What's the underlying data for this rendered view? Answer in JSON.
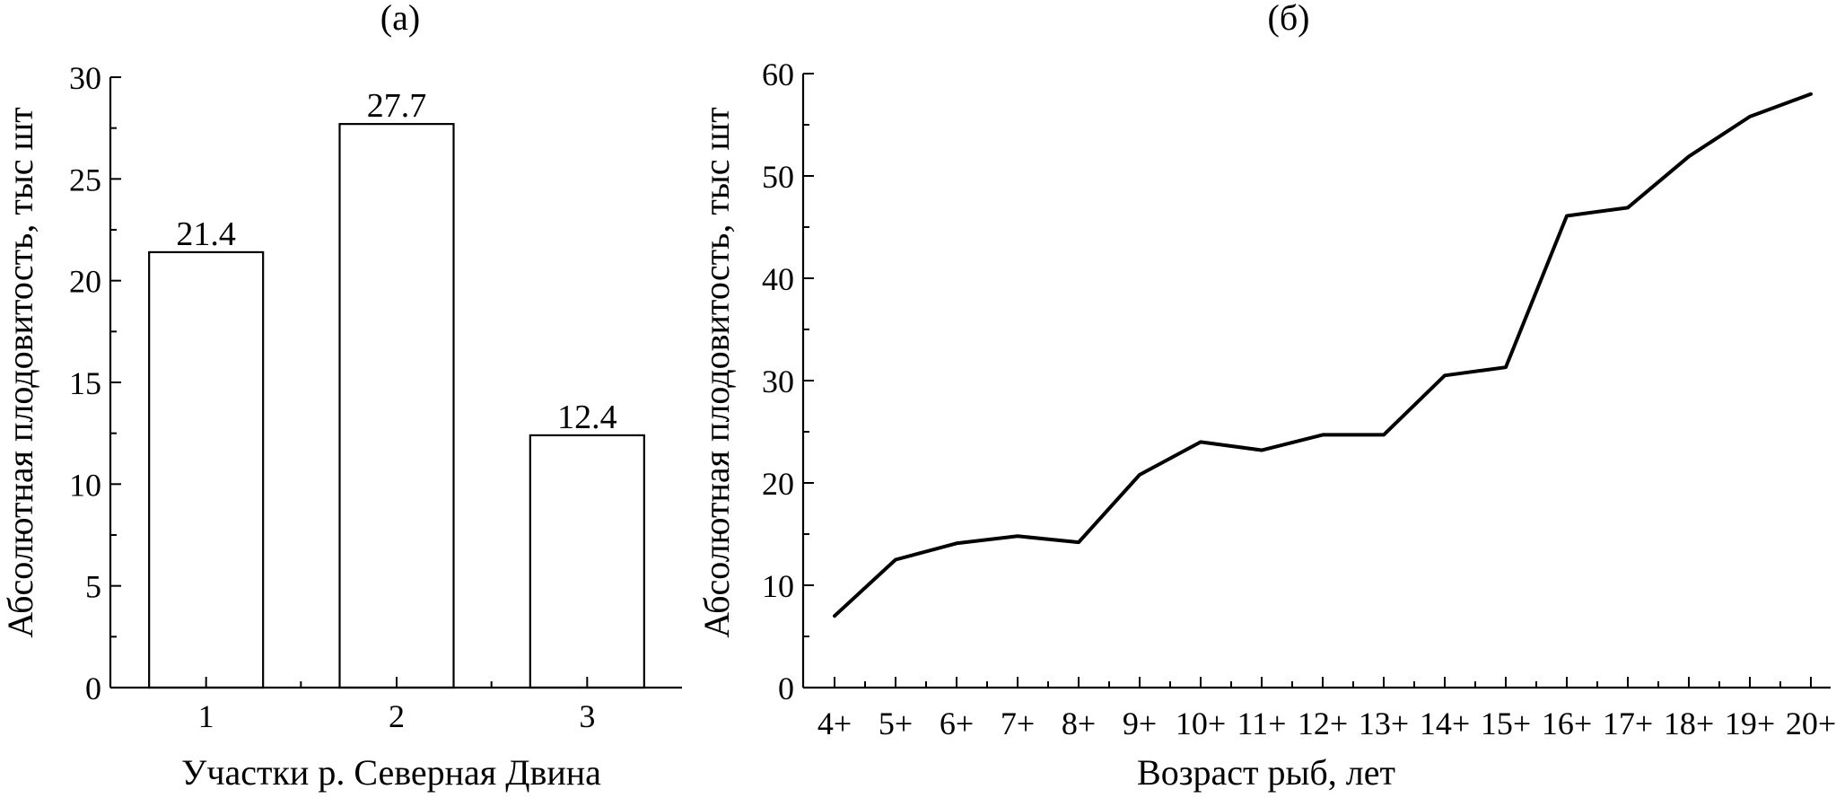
{
  "chart_data": [
    {
      "panel_label": "(а)",
      "type": "bar",
      "categories": [
        "1",
        "2",
        "3"
      ],
      "values": [
        21.4,
        27.7,
        12.4
      ],
      "value_labels": [
        "21.4",
        "27.7",
        "12.4"
      ],
      "xlabel": "Участки р. Северная Двина",
      "ylabel": "Абсолютная плодовитость, тыс шт",
      "ylim": [
        0,
        30
      ],
      "yticks": [
        0,
        5,
        10,
        15,
        20,
        25,
        30
      ]
    },
    {
      "panel_label": "(б)",
      "type": "line",
      "categories": [
        "4+",
        "5+",
        "6+",
        "7+",
        "8+",
        "9+",
        "10+",
        "11+",
        "12+",
        "13+",
        "14+",
        "15+",
        "16+",
        "17+",
        "18+",
        "19+",
        "20+"
      ],
      "values": [
        7.0,
        12.5,
        14.1,
        14.8,
        14.2,
        20.8,
        24.0,
        23.2,
        24.7,
        24.7,
        30.5,
        31.3,
        46.1,
        46.9,
        51.9,
        55.8,
        58.0
      ],
      "xlabel": "Возраст рыб, лет",
      "ylabel": "Абсолютная плодовитость, тыс шт",
      "ylim": [
        0,
        60
      ],
      "yticks": [
        0,
        10,
        20,
        30,
        40,
        50,
        60
      ]
    }
  ]
}
